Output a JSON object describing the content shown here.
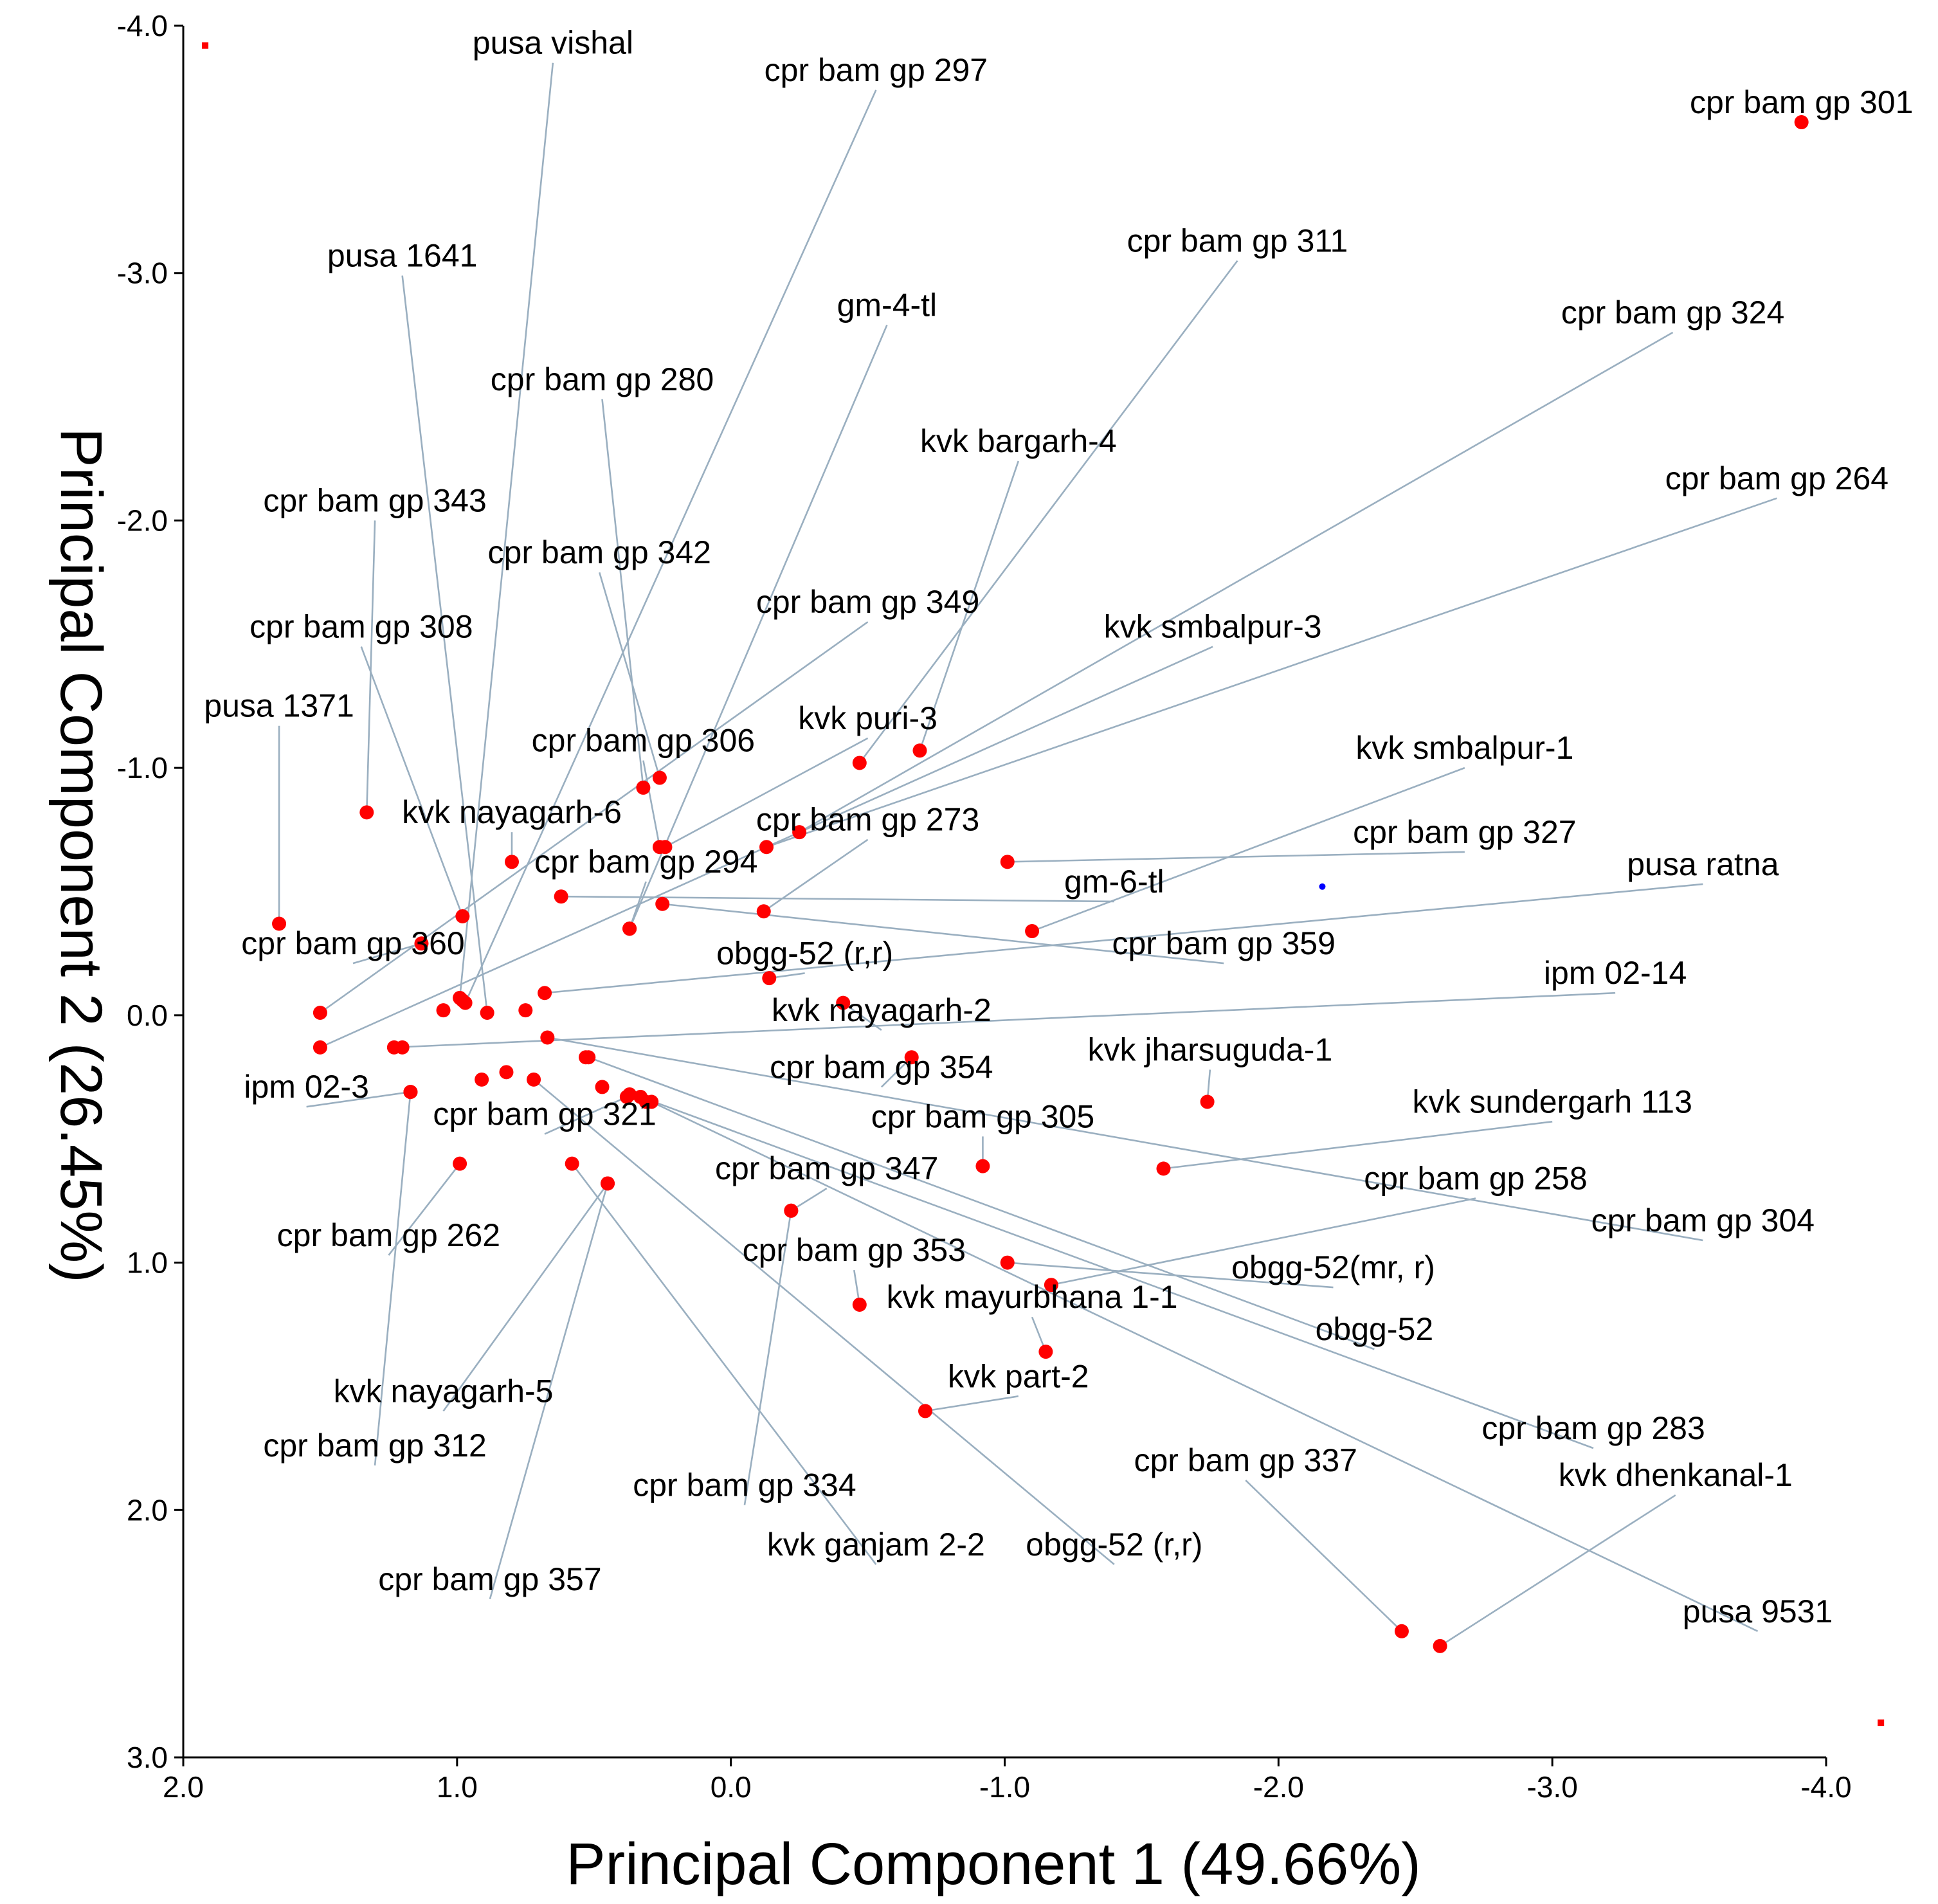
{
  "chart_data": {
    "type": "scatter",
    "title": "",
    "xlabel": "Principal Component 1 (49.66%)",
    "ylabel": "Principal Component 2 (26.45%)",
    "xlim": [
      2.0,
      -4.0
    ],
    "ylim": [
      -4.0,
      3.0
    ],
    "x_ticks": [
      {
        "value": 2.0,
        "label": "2.0"
      },
      {
        "value": 1.0,
        "label": "1.0"
      },
      {
        "value": 0.0,
        "label": "0.0"
      },
      {
        "value": -1.0,
        "label": "-1.0"
      },
      {
        "value": -2.0,
        "label": "-2.0"
      },
      {
        "value": -3.0,
        "label": "-3.0"
      },
      {
        "value": -4.0,
        "label": "-4.0"
      }
    ],
    "y_ticks": [
      {
        "value": -4.0,
        "label": "-4.0"
      },
      {
        "value": -3.0,
        "label": "-3.0"
      },
      {
        "value": -2.0,
        "label": "-2.0"
      },
      {
        "value": -1.0,
        "label": "-1.0"
      },
      {
        "value": 0.0,
        "label": "0.0"
      },
      {
        "value": 1.0,
        "label": "1.0"
      },
      {
        "value": 2.0,
        "label": "2.0"
      },
      {
        "value": 3.0,
        "label": "3.0"
      }
    ],
    "points": [
      {
        "name": "pusa vishal",
        "x": 0.99,
        "y": -0.07,
        "lx": 0.65,
        "ly": -3.85
      },
      {
        "name": "cpr bam gp 297",
        "x": 0.97,
        "y": -0.05,
        "lx": -0.53,
        "ly": -3.74
      },
      {
        "name": "cpr bam gp 301",
        "x": -3.91,
        "y": -3.61,
        "lx": -3.91,
        "ly": -3.61
      },
      {
        "name": "pusa 1641",
        "x": 0.89,
        "y": -0.01,
        "lx": 1.2,
        "ly": -2.99
      },
      {
        "name": "gm-4-tl",
        "x": 0.37,
        "y": -0.35,
        "lx": -0.57,
        "ly": -2.79
      },
      {
        "name": "cpr bam gp 311",
        "x": -0.47,
        "y": -1.02,
        "lx": -1.85,
        "ly": -3.05
      },
      {
        "name": "cpr bam gp 324",
        "x": -0.25,
        "y": -0.74,
        "lx": -3.44,
        "ly": -2.76
      },
      {
        "name": "cpr bam gp 280",
        "x": 0.32,
        "y": -0.92,
        "lx": 0.47,
        "ly": -2.49
      },
      {
        "name": "kvk bargarh-4",
        "x": -0.69,
        "y": -1.07,
        "lx": -1.05,
        "ly": -2.24
      },
      {
        "name": "cpr bam gp 264",
        "x": -0.13,
        "y": -0.68,
        "lx": -3.82,
        "ly": -2.09
      },
      {
        "name": "cpr bam gp 343",
        "x": 1.33,
        "y": -0.82,
        "lx": 1.3,
        "ly": -2.0
      },
      {
        "name": "cpr bam gp 342",
        "x": 0.26,
        "y": -0.96,
        "lx": 0.48,
        "ly": -1.79
      },
      {
        "name": "cpr bam gp 349",
        "x": 1.5,
        "y": -0.01,
        "lx": -0.5,
        "ly": -1.59
      },
      {
        "name": "kvk smbalpur-3",
        "x": 1.5,
        "y": 0.13,
        "lx": -1.76,
        "ly": -1.49
      },
      {
        "name": "cpr bam gp 308",
        "x": 0.98,
        "y": -0.4,
        "lx": 1.35,
        "ly": -1.49
      },
      {
        "name": "pusa 1371",
        "x": 1.65,
        "y": -0.37,
        "lx": 1.65,
        "ly": -1.17
      },
      {
        "name": "kvk puri-3",
        "x": 0.24,
        "y": -0.68,
        "lx": -0.5,
        "ly": -1.12
      },
      {
        "name": "cpr bam gp 306",
        "x": 0.26,
        "y": -0.68,
        "lx": 0.32,
        "ly": -1.03
      },
      {
        "name": "kvk smbalpur-1",
        "x": -1.1,
        "y": -0.34,
        "lx": -2.68,
        "ly": -1.0
      },
      {
        "name": "kvk nayagarh-6",
        "x": 0.8,
        "y": -0.62,
        "lx": 0.8,
        "ly": -0.74
      },
      {
        "name": "cpr bam gp 273",
        "x": -0.12,
        "y": -0.42,
        "lx": -0.5,
        "ly": -0.71
      },
      {
        "name": "cpr bam gp 327",
        "x": -1.01,
        "y": -0.62,
        "lx": -2.68,
        "ly": -0.66
      },
      {
        "name": "cpr bam gp 294",
        "x": 0.37,
        "y": -0.35,
        "lx": 0.31,
        "ly": -0.54
      },
      {
        "name": "pusa ratna",
        "x": 0.68,
        "y": -0.09,
        "lx": -3.55,
        "ly": -0.53
      },
      {
        "name": "gm-6-tl",
        "x": 0.62,
        "y": -0.48,
        "lx": -1.4,
        "ly": -0.46
      },
      {
        "name": "cpr bam gp 359",
        "x": 0.25,
        "y": -0.45,
        "lx": -1.8,
        "ly": -0.21
      },
      {
        "name": "cpr bam gp 360",
        "x": 1.13,
        "y": -0.29,
        "lx": 1.38,
        "ly": -0.21
      },
      {
        "name": "obgg-52 (r,r)",
        "x": -0.14,
        "y": -0.15,
        "lx": -0.27,
        "ly": -0.17
      },
      {
        "name": "ipm 02-14",
        "x": 1.23,
        "y": 0.13,
        "lx": -3.23,
        "ly": -0.09
      },
      {
        "name": "kvk nayagarh-2",
        "x": -0.41,
        "y": -0.05,
        "lx": -0.55,
        "ly": 0.06
      },
      {
        "name": "cpr bam gp 354",
        "x": -0.66,
        "y": 0.17,
        "lx": -0.55,
        "ly": 0.29
      },
      {
        "name": "kvk jharsuguda-1",
        "x": -1.74,
        "y": 0.35,
        "lx": -1.75,
        "ly": 0.22
      },
      {
        "name": "ipm 02-3",
        "x": 1.17,
        "y": 0.31,
        "lx": 1.55,
        "ly": 0.37
      },
      {
        "name": "cpr bam gp 321",
        "x": 0.38,
        "y": 0.33,
        "lx": 0.68,
        "ly": 0.48
      },
      {
        "name": "cpr bam gp 305",
        "x": -0.92,
        "y": 0.61,
        "lx": -0.92,
        "ly": 0.49
      },
      {
        "name": "kvk sundergarh 113",
        "x": -1.58,
        "y": 0.62,
        "lx": -3.0,
        "ly": 0.43
      },
      {
        "name": "cpr bam gp 347",
        "x": -0.22,
        "y": 0.79,
        "lx": -0.35,
        "ly": 0.7
      },
      {
        "name": "cpr bam gp 258",
        "x": -1.17,
        "y": 1.09,
        "lx": -2.72,
        "ly": 0.74
      },
      {
        "name": "cpr bam gp 304",
        "x": 0.67,
        "y": 0.09,
        "lx": -3.55,
        "ly": 0.91
      },
      {
        "name": "cpr bam gp 262",
        "x": 0.99,
        "y": 0.6,
        "lx": 1.25,
        "ly": 0.97
      },
      {
        "name": "obgg-52(mr, r)",
        "x": -1.01,
        "y": 1.0,
        "lx": -2.2,
        "ly": 1.1
      },
      {
        "name": "cpr bam gp 353",
        "x": -0.47,
        "y": 1.17,
        "lx": -0.45,
        "ly": 1.03
      },
      {
        "name": "kvk mayurbhana 1-1",
        "x": -1.15,
        "y": 1.36,
        "lx": -1.1,
        "ly": 1.22
      },
      {
        "name": "obgg-52",
        "x": 0.52,
        "y": 0.17,
        "lx": -2.35,
        "ly": 1.35
      },
      {
        "name": "kvk part-2",
        "x": -0.71,
        "y": 1.6,
        "lx": -1.05,
        "ly": 1.54
      },
      {
        "name": "kvk nayagarh-5",
        "x": 0.45,
        "y": 0.68,
        "lx": 1.05,
        "ly": 1.6
      },
      {
        "name": "cpr bam gp 283",
        "x": 0.33,
        "y": 0.33,
        "lx": -3.15,
        "ly": 1.75
      },
      {
        "name": "cpr bam gp 312",
        "x": 1.17,
        "y": 0.31,
        "lx": 1.3,
        "ly": 1.82
      },
      {
        "name": "cpr bam gp 337",
        "x": -2.45,
        "y": 2.49,
        "lx": -1.88,
        "ly": 1.88
      },
      {
        "name": "kvk dhenkanal-1",
        "x": -2.59,
        "y": 2.55,
        "lx": -3.45,
        "ly": 1.94
      },
      {
        "name": "cpr bam gp 334",
        "x": -0.22,
        "y": 0.79,
        "lx": -0.05,
        "ly": 1.98
      },
      {
        "name": "kvk ganjam 2-2",
        "x": 0.58,
        "y": 0.6,
        "lx": -0.53,
        "ly": 2.22
      },
      {
        "name": "obgg-52 (r,r)",
        "x": 0.72,
        "y": 0.26,
        "lx": -1.4,
        "ly": 2.22
      },
      {
        "name": "cpr bam gp 357",
        "x": 0.45,
        "y": 0.68,
        "lx": 0.88,
        "ly": 2.36
      },
      {
        "name": "pusa 9531",
        "x": 0.29,
        "y": 0.35,
        "lx": -3.75,
        "ly": 2.49
      }
    ],
    "extra_points": [
      {
        "x": 0.75,
        "y": -0.02
      },
      {
        "x": 1.2,
        "y": 0.13
      },
      {
        "x": 1.05,
        "y": -0.02
      },
      {
        "x": 0.98,
        "y": -0.06
      },
      {
        "x": 0.82,
        "y": 0.23
      },
      {
        "x": 0.91,
        "y": 0.26
      },
      {
        "x": 0.53,
        "y": 0.17
      },
      {
        "x": 0.47,
        "y": 0.29
      },
      {
        "x": 0.37,
        "y": 0.32
      },
      {
        "x": 0.31,
        "y": 0.35
      },
      {
        "x": 0.37,
        "y": -0.35
      }
    ],
    "corner_markers": [
      {
        "x": 1.92,
        "y": -3.92
      },
      {
        "x": -4.2,
        "y": 2.86
      }
    ],
    "centroid": {
      "x": -2.16,
      "y": -0.52
    }
  }
}
